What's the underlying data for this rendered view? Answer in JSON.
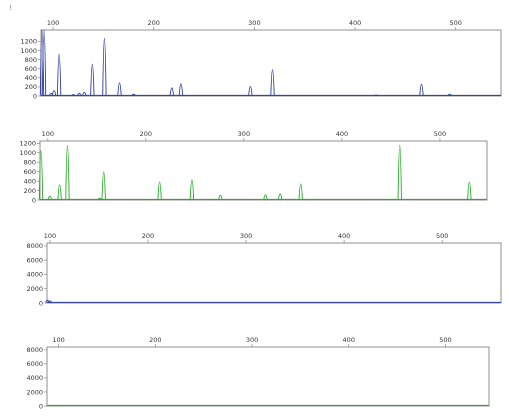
{
  "corner_mark": "!",
  "chart_data": [
    {
      "type": "line",
      "title": "",
      "xlabel": "",
      "ylabel": "",
      "xlim": [
        88,
        545
      ],
      "ylim": [
        0,
        1450
      ],
      "x_ticks": [
        100,
        200,
        300,
        400,
        500
      ],
      "y_ticks": [
        0,
        200,
        400,
        600,
        800,
        1000,
        1200
      ],
      "color": "#2c3a9c",
      "series": [
        {
          "peaks": [
            {
              "x": 89,
              "y": 1450
            },
            {
              "x": 91,
              "y": 1450
            },
            {
              "x": 98,
              "y": 60
            },
            {
              "x": 101,
              "y": 120
            },
            {
              "x": 106,
              "y": 920
            },
            {
              "x": 120,
              "y": 30
            },
            {
              "x": 126,
              "y": 60
            },
            {
              "x": 131,
              "y": 80
            },
            {
              "x": 139,
              "y": 700
            },
            {
              "x": 151,
              "y": 1270
            },
            {
              "x": 166,
              "y": 290
            },
            {
              "x": 180,
              "y": 40
            },
            {
              "x": 218,
              "y": 180
            },
            {
              "x": 227,
              "y": 270
            },
            {
              "x": 296,
              "y": 210
            },
            {
              "x": 318,
              "y": 580
            },
            {
              "x": 421,
              "y": 20
            },
            {
              "x": 466,
              "y": 260
            },
            {
              "x": 494,
              "y": 40
            }
          ]
        }
      ]
    },
    {
      "type": "line",
      "title": "",
      "xlabel": "",
      "ylabel": "",
      "xlim": [
        92,
        548
      ],
      "ylim": [
        0,
        1250
      ],
      "x_ticks": [
        100,
        200,
        300,
        400,
        500
      ],
      "y_ticks": [
        0,
        200,
        400,
        600,
        800,
        1000,
        1200
      ],
      "color": "#22aa22",
      "series": [
        {
          "peaks": [
            {
              "x": 93,
              "y": 1050
            },
            {
              "x": 102,
              "y": 80
            },
            {
              "x": 112,
              "y": 320
            },
            {
              "x": 120,
              "y": 1160
            },
            {
              "x": 153,
              "y": 40
            },
            {
              "x": 157,
              "y": 600
            },
            {
              "x": 214,
              "y": 380
            },
            {
              "x": 247,
              "y": 430
            },
            {
              "x": 276,
              "y": 100
            },
            {
              "x": 322,
              "y": 110
            },
            {
              "x": 337,
              "y": 130
            },
            {
              "x": 358,
              "y": 340
            },
            {
              "x": 459,
              "y": 1160
            },
            {
              "x": 530,
              "y": 380
            }
          ]
        }
      ]
    },
    {
      "type": "line",
      "title": "",
      "xlabel": "",
      "ylabel": "",
      "xlim": [
        97,
        560
      ],
      "ylim": [
        0,
        8400
      ],
      "x_ticks": [
        100,
        200,
        300,
        400,
        500
      ],
      "y_ticks": [
        0,
        2000,
        4000,
        6000,
        8000
      ],
      "color": "#2c3a9c",
      "series": [
        {
          "peaks": [
            {
              "x": 97.4,
              "y": 400
            },
            {
              "x": 100,
              "y": 300
            }
          ]
        }
      ]
    },
    {
      "type": "line",
      "title": "",
      "xlabel": "",
      "ylabel": "",
      "xlim": [
        88,
        545
      ],
      "ylim": [
        0,
        8400
      ],
      "x_ticks": [
        100,
        200,
        300,
        400,
        500
      ],
      "y_ticks": [
        0,
        2000,
        4000,
        6000,
        8000
      ],
      "color": "#22aa22",
      "series": [
        {
          "peaks": []
        }
      ]
    }
  ]
}
